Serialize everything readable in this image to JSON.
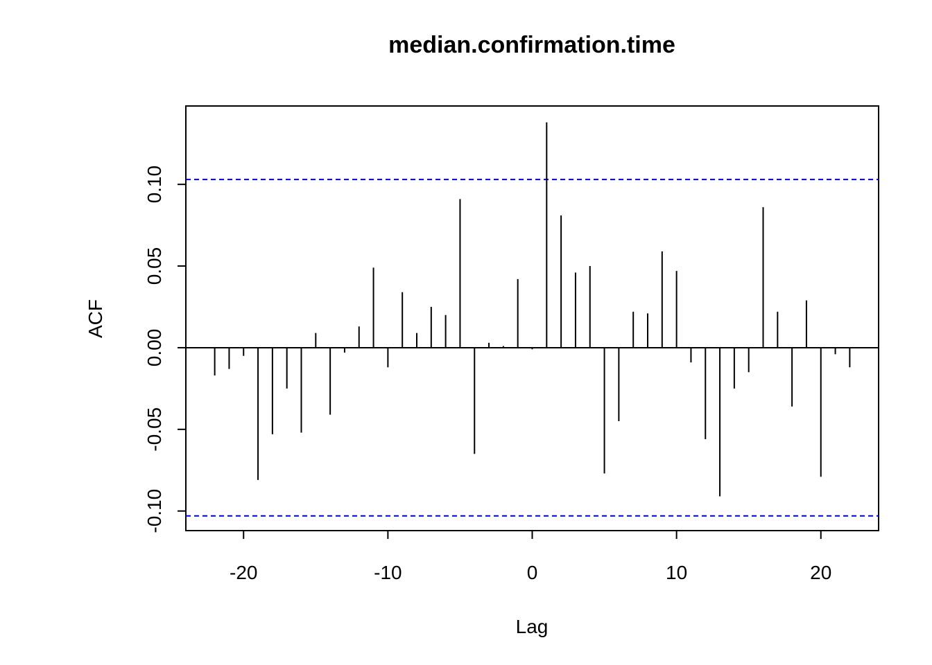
{
  "chart_data": {
    "type": "bar",
    "subtype": "acf-correlogram",
    "title": "median.confirmation.time",
    "xlabel": "Lag",
    "ylabel": "ACF",
    "xlim": [
      -24,
      24
    ],
    "ylim": [
      -0.112,
      0.148
    ],
    "xticks": [
      -20,
      -10,
      0,
      10,
      20
    ],
    "xtick_labels": [
      "-20",
      "-10",
      "0",
      "10",
      "20"
    ],
    "yticks": [
      -0.1,
      -0.05,
      0.0,
      0.05,
      0.1
    ],
    "ytick_labels": [
      "-0.10",
      "-0.05",
      "0.00",
      "0.05",
      "0.10"
    ],
    "confidence_bounds": [
      0.103,
      -0.103
    ],
    "confidence_color": "#0000CC",
    "zero_line": 0,
    "grid": false,
    "x": [
      -22,
      -21,
      -20,
      -19,
      -18,
      -17,
      -16,
      -15,
      -14,
      -13,
      -12,
      -11,
      -10,
      -9,
      -8,
      -7,
      -6,
      -5,
      -4,
      -3,
      -2,
      -1,
      0,
      1,
      2,
      3,
      4,
      5,
      6,
      7,
      8,
      9,
      10,
      11,
      12,
      13,
      14,
      15,
      16,
      17,
      18,
      19,
      20,
      21,
      22
    ],
    "values": [
      -0.017,
      -0.013,
      -0.005,
      -0.081,
      -0.053,
      -0.025,
      -0.052,
      0.009,
      -0.041,
      -0.003,
      0.013,
      0.049,
      -0.012,
      0.034,
      0.009,
      0.025,
      0.02,
      0.091,
      -0.065,
      0.003,
      0.001,
      0.042,
      -0.001,
      0.138,
      0.081,
      0.046,
      0.05,
      -0.077,
      -0.045,
      0.022,
      0.021,
      0.059,
      0.047,
      -0.009,
      -0.056,
      -0.091,
      -0.025,
      -0.015,
      0.086,
      0.022,
      -0.036,
      0.029,
      -0.079,
      -0.004,
      -0.012
    ]
  }
}
